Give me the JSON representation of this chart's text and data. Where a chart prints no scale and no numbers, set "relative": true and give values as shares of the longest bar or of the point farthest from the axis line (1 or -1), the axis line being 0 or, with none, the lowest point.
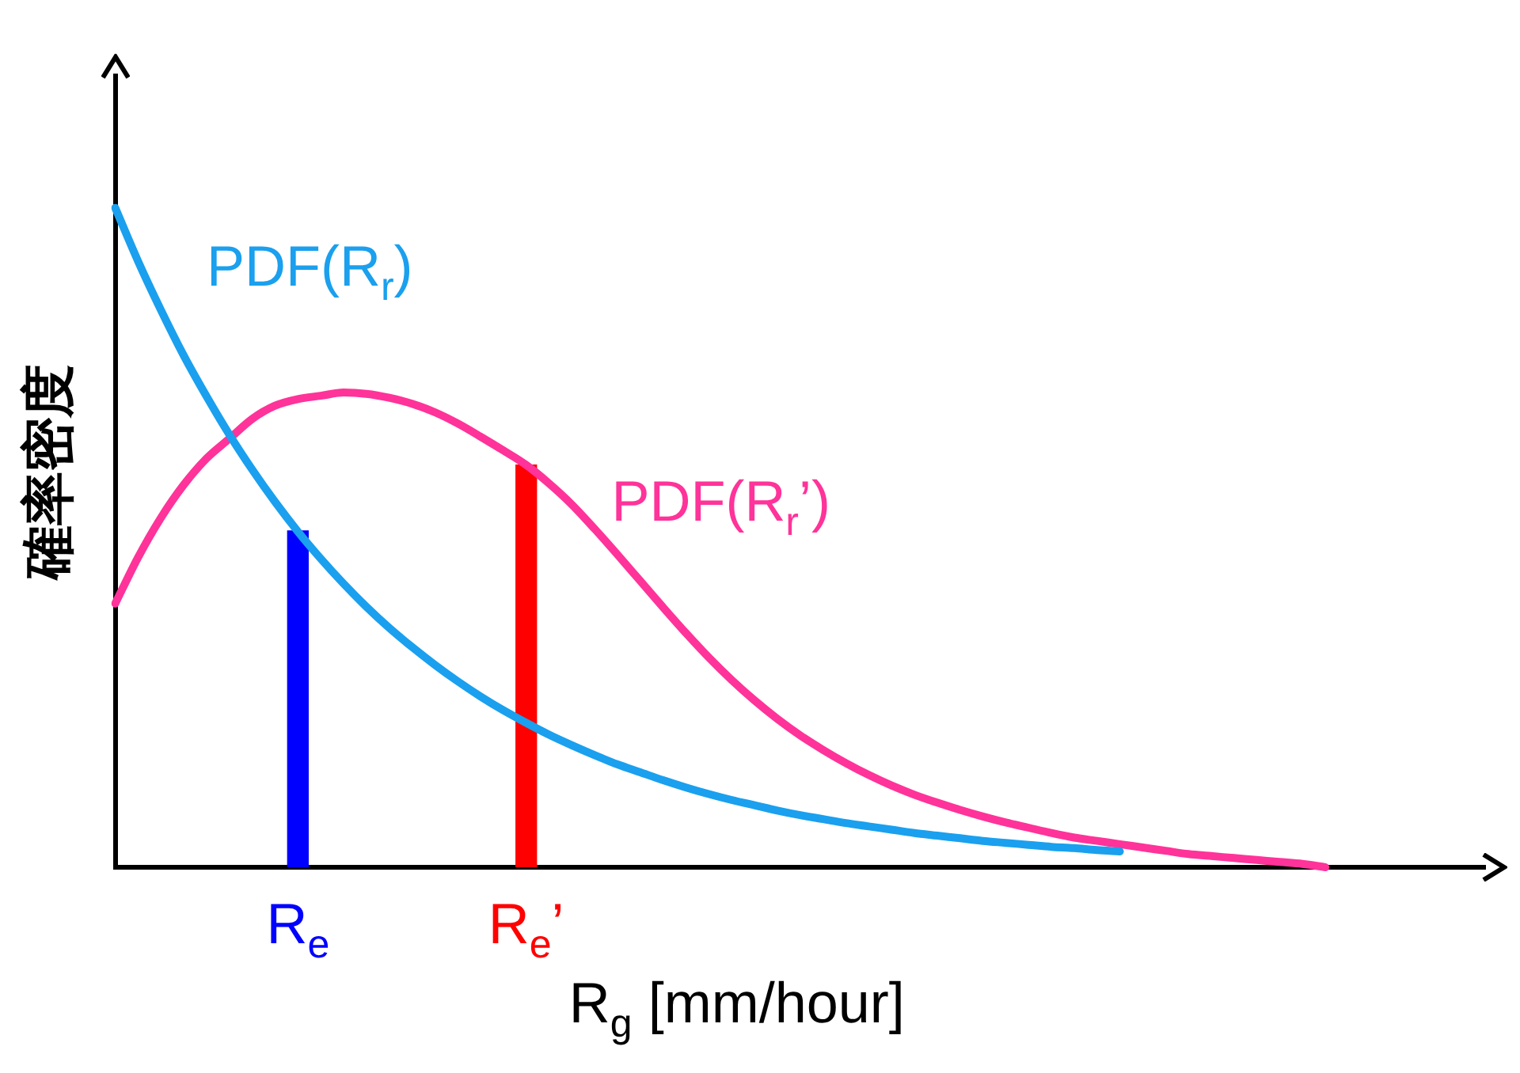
{
  "chart_data": {
    "type": "line",
    "relative": true,
    "grid": false,
    "legend": false,
    "tick_labels": "x",
    "ylabel": "確率密度",
    "xlabel": "R$_{g}$ [mm/hour]",
    "categories": [
      null,
      null,
      null,
      null,
      null,
      null,
      null,
      null,
      "R$_{e}$",
      null,
      null,
      null,
      null,
      null,
      null,
      null,
      null,
      null,
      "R$_{e}$’",
      null,
      null,
      null,
      null,
      null,
      null,
      null,
      null,
      null,
      null,
      null,
      null,
      null,
      null,
      null,
      null,
      null,
      null,
      null,
      null,
      null,
      null,
      null,
      null,
      null,
      null,
      null,
      null,
      null,
      null,
      null,
      null,
      null,
      null,
      null,
      null,
      null,
      null,
      null,
      null,
      null,
      null
    ],
    "series": [
      {
        "name": "PDF(R$_{r}$)",
        "color": "#1aa0ee",
        "values": [
          1,
          0.919,
          0.845,
          0.776,
          0.714,
          0.656,
          0.603,
          0.554,
          0.509,
          0.468,
          0.43,
          0.395,
          0.363,
          0.334,
          0.307,
          0.282,
          0.259,
          0.238,
          0.219,
          0.201,
          0.185,
          0.17,
          0.156,
          0.144,
          0.132,
          0.121,
          0.111,
          0.102,
          0.094,
          0.086,
          0.079,
          0.073,
          0.067,
          0.062,
          0.057,
          0.052,
          0.048,
          0.044,
          0.04,
          0.037,
          0.034,
          0.031,
          0.029,
          0.026,
          0.024,
          null,
          null,
          null,
          null,
          null,
          null,
          null,
          null,
          null,
          null,
          null,
          null,
          null,
          null,
          null,
          null
        ]
      },
      {
        "name": "PDF(R$_{r}$’)",
        "color": "#ff3399",
        "values": [
          0.4,
          0.47,
          0.53,
          0.58,
          0.62,
          0.65,
          0.68,
          0.7,
          0.71,
          0.715,
          0.72,
          0.718,
          0.712,
          0.703,
          0.69,
          0.673,
          0.653,
          0.632,
          0.61,
          0.582,
          0.55,
          0.513,
          0.474,
          0.434,
          0.394,
          0.355,
          0.318,
          0.284,
          0.253,
          0.225,
          0.2,
          0.178,
          0.158,
          0.14,
          0.124,
          0.11,
          0.098,
          0.087,
          0.077,
          0.068,
          0.06,
          0.052,
          0.045,
          0.04,
          0.035,
          0.03,
          0.025,
          0.02,
          0.017,
          0.014,
          0.011,
          0.008,
          0.005,
          0,
          null,
          null,
          null,
          null,
          null,
          null,
          null
        ]
      },
      {
        "type": "bar",
        "color": "#0000ff",
        "values": [
          null,
          null,
          null,
          null,
          null,
          null,
          null,
          null,
          0.51,
          null,
          null,
          null,
          null,
          null,
          null,
          null,
          null,
          null,
          null,
          null,
          null,
          null,
          null,
          null,
          null,
          null,
          null,
          null,
          null,
          null,
          null,
          null,
          null,
          null,
          null,
          null,
          null,
          null,
          null,
          null,
          null,
          null,
          null,
          null,
          null,
          null,
          null,
          null,
          null,
          null,
          null,
          null,
          null,
          null,
          null,
          null,
          null,
          null,
          null,
          null,
          null
        ]
      },
      {
        "type": "bar",
        "color": "#ff0000",
        "values": [
          null,
          null,
          null,
          null,
          null,
          null,
          null,
          null,
          null,
          null,
          null,
          null,
          null,
          null,
          null,
          null,
          null,
          null,
          0.61,
          null,
          null,
          null,
          null,
          null,
          null,
          null,
          null,
          null,
          null,
          null,
          null,
          null,
          null,
          null,
          null,
          null,
          null,
          null,
          null,
          null,
          null,
          null,
          null,
          null,
          null,
          null,
          null,
          null,
          null,
          null,
          null,
          null,
          null,
          null,
          null,
          null,
          null,
          null,
          null,
          null,
          null
        ]
      }
    ]
  }
}
